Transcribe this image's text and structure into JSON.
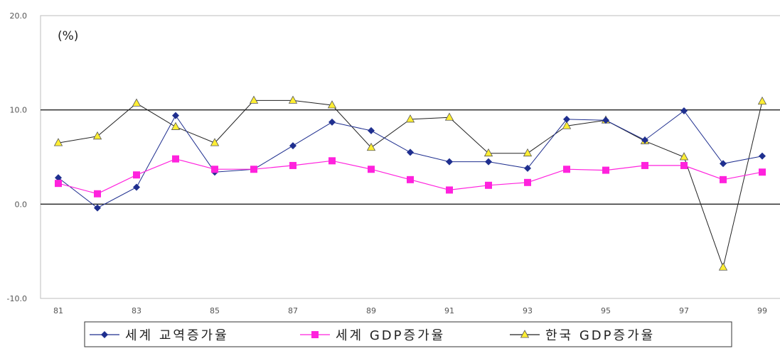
{
  "chart_data": {
    "type": "line",
    "unit_label": "(%)",
    "ylim": [
      -10,
      20
    ],
    "yticks": [
      -10,
      0,
      10,
      20
    ],
    "reference_lines": [
      0,
      10
    ],
    "x": [
      "81",
      "82",
      "83",
      "84",
      "85",
      "86",
      "87",
      "88",
      "89",
      "90",
      "91",
      "92",
      "93",
      "94",
      "95",
      "96",
      "97",
      "98",
      "99"
    ],
    "xtick_labels": [
      "81",
      "83",
      "85",
      "87",
      "89",
      "91",
      "93",
      "95",
      "97",
      "99"
    ],
    "legend_position": "bottom",
    "series": [
      {
        "name": "세계 교역증가율",
        "color": "#1f2f8f",
        "marker": "diamond",
        "values": [
          2.8,
          -0.4,
          1.8,
          9.4,
          3.4,
          3.7,
          6.2,
          8.7,
          7.8,
          5.5,
          4.5,
          4.5,
          3.8,
          9.0,
          8.9,
          6.8,
          9.9,
          4.3,
          5.1
        ]
      },
      {
        "name": "세계 GDP증가율",
        "color": "#ff22dd",
        "marker": "square",
        "values": [
          2.2,
          1.1,
          3.1,
          4.8,
          3.7,
          3.7,
          4.1,
          4.6,
          3.7,
          2.6,
          1.5,
          2.0,
          2.3,
          3.7,
          3.6,
          4.1,
          4.1,
          2.6,
          3.4
        ]
      },
      {
        "name": "한국 GDP증가율",
        "color": "#222222",
        "marker": "triangle",
        "marker_fill": "#ffee33",
        "values": [
          6.5,
          7.2,
          10.7,
          8.2,
          6.5,
          11.0,
          11.0,
          10.5,
          6.0,
          9.0,
          9.2,
          5.4,
          5.4,
          8.3,
          8.9,
          6.7,
          5.0,
          -6.7,
          10.9
        ]
      }
    ]
  }
}
